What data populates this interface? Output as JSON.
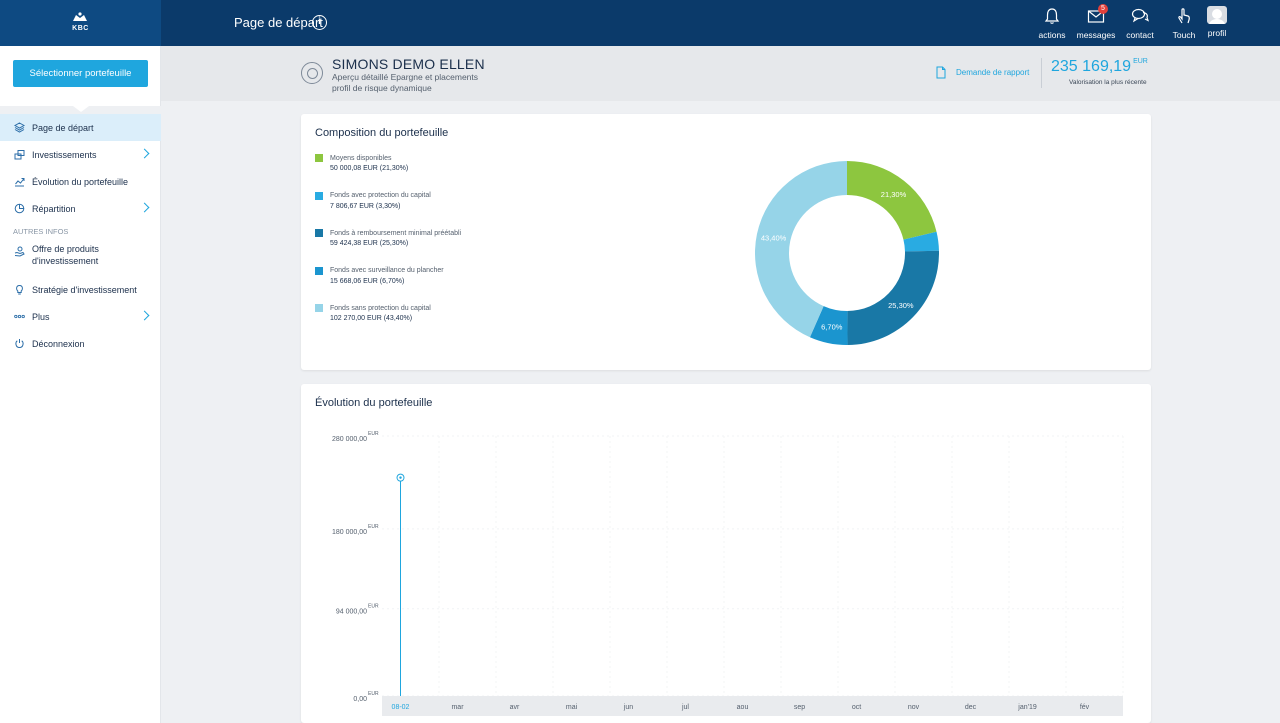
{
  "brand": {
    "logo_text": "KBC"
  },
  "topbar": {
    "page_title": "Page de départ",
    "actions": [
      {
        "label": "actions",
        "icon": "bell-icon"
      },
      {
        "label": "messages",
        "icon": "mail-icon",
        "badge": "5"
      },
      {
        "label": "contact",
        "icon": "chat-icon"
      },
      {
        "label": "Touch",
        "icon": "touch-icon"
      }
    ],
    "profile_label": "profil"
  },
  "sidebar": {
    "select_button": "Sélectionner portefeuille",
    "items": [
      {
        "label": "Page de départ",
        "icon": "layers-icon",
        "active": true
      },
      {
        "label": "Investissements",
        "icon": "invest-icon",
        "chevron": true
      },
      {
        "label": "Évolution du portefeuille",
        "icon": "trend-icon"
      },
      {
        "label": "Répartition",
        "icon": "pie-icon",
        "chevron": true
      }
    ],
    "section": "AUTRES INFOS",
    "other_items": [
      {
        "label": "Offre de produits d'investissement",
        "icon": "hand-coin-icon"
      },
      {
        "label": "Stratégie d'investissement",
        "icon": "lightbulb-icon"
      },
      {
        "label": "Plus",
        "icon": "dots-icon",
        "chevron": true
      },
      {
        "label": "Déconnexion",
        "icon": "power-icon"
      }
    ]
  },
  "header": {
    "client_name": "SIMONS DEMO ELLEN",
    "subtitle_1": "Aperçu détaillé Epargne et placements",
    "subtitle_2": "profil de risque dynamique",
    "report_link": "Demande de rapport",
    "total_value": "235 169,19",
    "total_currency": "EUR",
    "total_caption": "Valorisation la plus récente"
  },
  "composition": {
    "title": "Composition du portefeuille",
    "legend": [
      {
        "name": "Moyens disponibles",
        "value": "50 000,08 EUR  (21,30%)",
        "color": "#8dc63f"
      },
      {
        "name": "Fonds avec protection du capital",
        "value": "7 806,67 EUR  (3,30%)",
        "color": "#29abe2"
      },
      {
        "name": "Fonds à remboursement minimal préétabli",
        "value": "59 424,38 EUR  (25,30%)",
        "color": "#1978a6"
      },
      {
        "name": "Fonds avec surveillance du plancher",
        "value": "15 668,06 EUR  (6,70%)",
        "color": "#1b95cf"
      },
      {
        "name": "Fonds sans protection du capital",
        "value": "102 270,00 EUR  (43,40%)",
        "color": "#96d4e8"
      }
    ]
  },
  "chart_data": [
    {
      "type": "pie",
      "title": "Composition du portefeuille",
      "categories": [
        "Moyens disponibles",
        "Fonds avec protection du capital",
        "Fonds à remboursement minimal préétabli",
        "Fonds avec surveillance du plancher",
        "Fonds sans protection du capital"
      ],
      "values": [
        21.3,
        3.3,
        25.3,
        6.7,
        43.4
      ],
      "labels": [
        "21,30%",
        "",
        "25,30%",
        "6,70%",
        "43,40%"
      ],
      "colors": [
        "#8dc63f",
        "#29abe2",
        "#1978a6",
        "#1b95cf",
        "#96d4e8"
      ]
    },
    {
      "type": "line",
      "title": "Évolution du portefeuille",
      "x": [
        "08-02",
        "mar",
        "avr",
        "mai",
        "jun",
        "jul",
        "aou",
        "sep",
        "oct",
        "nov",
        "dec",
        "jan'19",
        "fév"
      ],
      "series": [
        {
          "values": [
            235169.19,
            null,
            null,
            null,
            null,
            null,
            null,
            null,
            null,
            null,
            null,
            null,
            null
          ]
        }
      ],
      "yticks": [
        "280 000,00",
        "180 000,00",
        "94 000,00",
        "0,00"
      ],
      "ytick_values": [
        280000,
        180000,
        94000,
        0
      ],
      "yunit": "EUR",
      "ylim": [
        0,
        280000
      ],
      "highlight_x": "08-02",
      "grid": true
    }
  ],
  "evolution": {
    "title": "Évolution du portefeuille",
    "selected_label": "08-02"
  }
}
